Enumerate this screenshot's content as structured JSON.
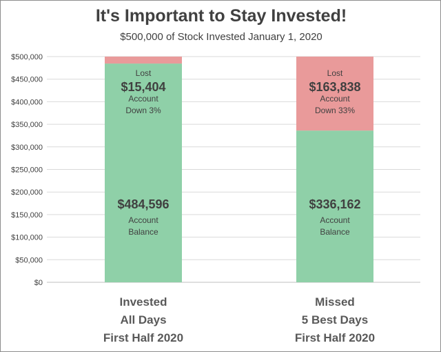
{
  "chart_data": {
    "type": "bar",
    "stacked": true,
    "title": "It's Important to Stay Invested!",
    "subtitle": "$500,000 of Stock Invested January 1, 2020",
    "categories": [
      [
        "Invested",
        "All Days",
        "First Half 2020"
      ],
      [
        "Missed",
        "5 Best Days",
        "First Half 2020"
      ]
    ],
    "ylim": [
      0,
      500000
    ],
    "yticks": [
      "$0",
      "$50,000",
      "$100,000",
      "$150,000",
      "$200,000",
      "$250,000",
      "$300,000",
      "$350,000",
      "$400,000",
      "$450,000",
      "$500,000"
    ],
    "ytick_values": [
      0,
      50000,
      100000,
      150000,
      200000,
      250000,
      300000,
      350000,
      400000,
      450000,
      500000
    ],
    "grid": true,
    "series": [
      {
        "values": [
          484596,
          336162
        ],
        "color": "#8fd0a8"
      },
      {
        "values": [
          15404,
          163838
        ],
        "color": "#e99a9a"
      }
    ],
    "bar_labels": [
      {
        "balance_amount": "$484,596",
        "balance_line1": "Account",
        "balance_line2": "Balance",
        "lost_title": "Lost",
        "lost_amount": "$15,404",
        "lost_line1": "Account",
        "lost_line2": "Down 3%"
      },
      {
        "balance_amount": "$336,162",
        "balance_line1": "Account",
        "balance_line2": "Balance",
        "lost_title": "Lost",
        "lost_amount": "$163,838",
        "lost_line1": "Account",
        "lost_line2": "Down 33%"
      }
    ],
    "colors": {
      "grid": "#d9d9d9",
      "axis": "#bfbfbf"
    }
  }
}
